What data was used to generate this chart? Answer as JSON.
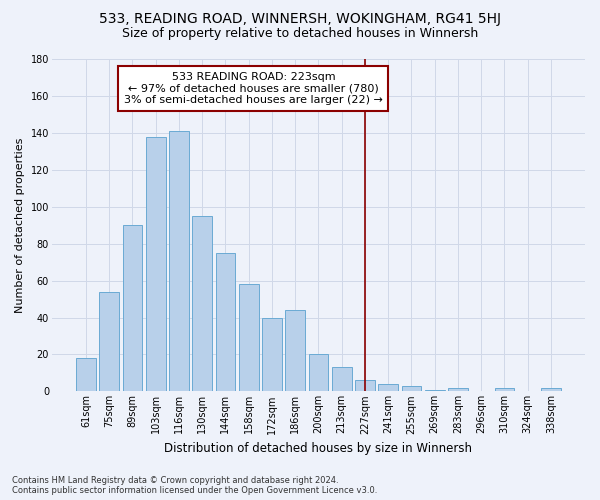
{
  "title": "533, READING ROAD, WINNERSH, WOKINGHAM, RG41 5HJ",
  "subtitle": "Size of property relative to detached houses in Winnersh",
  "xlabel": "Distribution of detached houses by size in Winnersh",
  "ylabel": "Number of detached properties",
  "categories": [
    "61sqm",
    "75sqm",
    "89sqm",
    "103sqm",
    "116sqm",
    "130sqm",
    "144sqm",
    "158sqm",
    "172sqm",
    "186sqm",
    "200sqm",
    "213sqm",
    "227sqm",
    "241sqm",
    "255sqm",
    "269sqm",
    "283sqm",
    "296sqm",
    "310sqm",
    "324sqm",
    "338sqm"
  ],
  "values": [
    18,
    54,
    90,
    138,
    141,
    95,
    75,
    58,
    40,
    44,
    20,
    13,
    6,
    4,
    3,
    1,
    2,
    0,
    2,
    0,
    2
  ],
  "bar_color": "#b8d0ea",
  "bar_edge_color": "#6aaad4",
  "grid_color": "#d0d8e8",
  "background_color": "#eef2fa",
  "vline_color": "#8b0000",
  "annotation_text": "533 READING ROAD: 223sqm\n← 97% of detached houses are smaller (780)\n3% of semi-detached houses are larger (22) →",
  "annotation_box_color": "#8b0000",
  "ylim": [
    0,
    180
  ],
  "footer_text": "Contains HM Land Registry data © Crown copyright and database right 2024.\nContains public sector information licensed under the Open Government Licence v3.0.",
  "title_fontsize": 10,
  "subtitle_fontsize": 9,
  "axis_label_fontsize": 8.5,
  "tick_fontsize": 7,
  "annotation_fontsize": 8,
  "ylabel_fontsize": 8
}
